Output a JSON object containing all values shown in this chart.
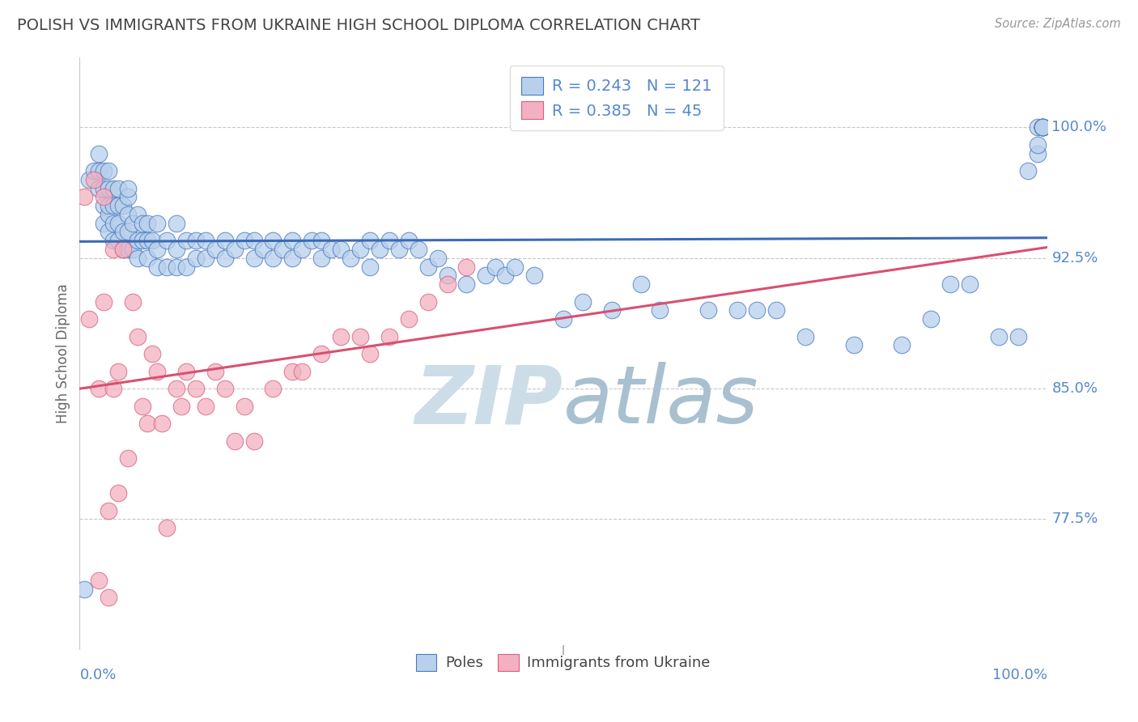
{
  "title": "POLISH VS IMMIGRANTS FROM UKRAINE HIGH SCHOOL DIPLOMA CORRELATION CHART",
  "source_text": "Source: ZipAtlas.com",
  "ylabel": "High School Diploma",
  "blue_R": 0.243,
  "blue_N": 121,
  "pink_R": 0.385,
  "pink_N": 45,
  "blue_color": "#b8d0eb",
  "pink_color": "#f2b0c0",
  "blue_edge_color": "#4a7bbf",
  "pink_edge_color": "#d96080",
  "blue_line_color": "#3a6bb5",
  "pink_line_color": "#d95070",
  "grid_color": "#c8c8c8",
  "title_color": "#444444",
  "label_color": "#5588cc",
  "watermark_color": "#ccdde8",
  "legend_label_blue": "Poles",
  "legend_label_pink": "Immigrants from Ukraine",
  "xlim": [
    0.0,
    1.0
  ],
  "ylim": [
    0.7,
    1.04
  ],
  "ytick_labels": [
    "77.5%",
    "85.0%",
    "92.5%",
    "100.0%"
  ],
  "ytick_values": [
    0.775,
    0.85,
    0.925,
    1.0
  ],
  "blue_x": [
    0.005,
    0.01,
    0.015,
    0.02,
    0.02,
    0.02,
    0.025,
    0.025,
    0.025,
    0.025,
    0.03,
    0.03,
    0.03,
    0.03,
    0.03,
    0.035,
    0.035,
    0.035,
    0.035,
    0.04,
    0.04,
    0.04,
    0.04,
    0.045,
    0.045,
    0.045,
    0.05,
    0.05,
    0.05,
    0.05,
    0.05,
    0.055,
    0.055,
    0.06,
    0.06,
    0.06,
    0.065,
    0.065,
    0.07,
    0.07,
    0.07,
    0.075,
    0.08,
    0.08,
    0.08,
    0.09,
    0.09,
    0.1,
    0.1,
    0.1,
    0.11,
    0.11,
    0.12,
    0.12,
    0.13,
    0.13,
    0.14,
    0.15,
    0.15,
    0.16,
    0.17,
    0.18,
    0.18,
    0.19,
    0.2,
    0.2,
    0.21,
    0.22,
    0.22,
    0.23,
    0.24,
    0.25,
    0.25,
    0.26,
    0.27,
    0.28,
    0.29,
    0.3,
    0.3,
    0.31,
    0.32,
    0.33,
    0.34,
    0.35,
    0.36,
    0.37,
    0.38,
    0.4,
    0.42,
    0.43,
    0.44,
    0.45,
    0.47,
    0.5,
    0.52,
    0.55,
    0.58,
    0.6,
    0.65,
    0.68,
    0.7,
    0.72,
    0.75,
    0.8,
    0.85,
    0.88,
    0.9,
    0.92,
    0.95,
    0.97,
    0.98,
    0.99,
    0.99,
    0.99,
    0.995,
    0.995,
    0.995,
    0.995,
    0.995,
    0.995,
    0.995
  ],
  "blue_y": [
    0.735,
    0.97,
    0.975,
    0.965,
    0.975,
    0.985,
    0.945,
    0.955,
    0.965,
    0.975,
    0.94,
    0.95,
    0.955,
    0.965,
    0.975,
    0.935,
    0.945,
    0.955,
    0.965,
    0.935,
    0.945,
    0.955,
    0.965,
    0.93,
    0.94,
    0.955,
    0.93,
    0.94,
    0.95,
    0.96,
    0.965,
    0.93,
    0.945,
    0.925,
    0.935,
    0.95,
    0.935,
    0.945,
    0.925,
    0.935,
    0.945,
    0.935,
    0.92,
    0.93,
    0.945,
    0.92,
    0.935,
    0.92,
    0.93,
    0.945,
    0.92,
    0.935,
    0.925,
    0.935,
    0.925,
    0.935,
    0.93,
    0.925,
    0.935,
    0.93,
    0.935,
    0.925,
    0.935,
    0.93,
    0.925,
    0.935,
    0.93,
    0.925,
    0.935,
    0.93,
    0.935,
    0.925,
    0.935,
    0.93,
    0.93,
    0.925,
    0.93,
    0.92,
    0.935,
    0.93,
    0.935,
    0.93,
    0.935,
    0.93,
    0.92,
    0.925,
    0.915,
    0.91,
    0.915,
    0.92,
    0.915,
    0.92,
    0.915,
    0.89,
    0.9,
    0.895,
    0.91,
    0.895,
    0.895,
    0.895,
    0.895,
    0.895,
    0.88,
    0.875,
    0.875,
    0.89,
    0.91,
    0.91,
    0.88,
    0.88,
    0.975,
    0.985,
    0.99,
    1.0,
    1.0,
    1.0,
    1.0,
    1.0,
    1.0,
    1.0,
    1.0
  ],
  "pink_x": [
    0.005,
    0.01,
    0.015,
    0.02,
    0.02,
    0.025,
    0.025,
    0.03,
    0.03,
    0.035,
    0.035,
    0.04,
    0.04,
    0.045,
    0.05,
    0.055,
    0.06,
    0.065,
    0.07,
    0.075,
    0.08,
    0.085,
    0.09,
    0.1,
    0.105,
    0.11,
    0.12,
    0.13,
    0.14,
    0.15,
    0.16,
    0.17,
    0.18,
    0.2,
    0.22,
    0.23,
    0.25,
    0.27,
    0.29,
    0.3,
    0.32,
    0.34,
    0.36,
    0.38,
    0.4
  ],
  "pink_y": [
    0.96,
    0.89,
    0.97,
    0.74,
    0.85,
    0.9,
    0.96,
    0.73,
    0.78,
    0.85,
    0.93,
    0.79,
    0.86,
    0.93,
    0.81,
    0.9,
    0.88,
    0.84,
    0.83,
    0.87,
    0.86,
    0.83,
    0.77,
    0.85,
    0.84,
    0.86,
    0.85,
    0.84,
    0.86,
    0.85,
    0.82,
    0.84,
    0.82,
    0.85,
    0.86,
    0.86,
    0.87,
    0.88,
    0.88,
    0.87,
    0.88,
    0.89,
    0.9,
    0.91,
    0.92
  ]
}
